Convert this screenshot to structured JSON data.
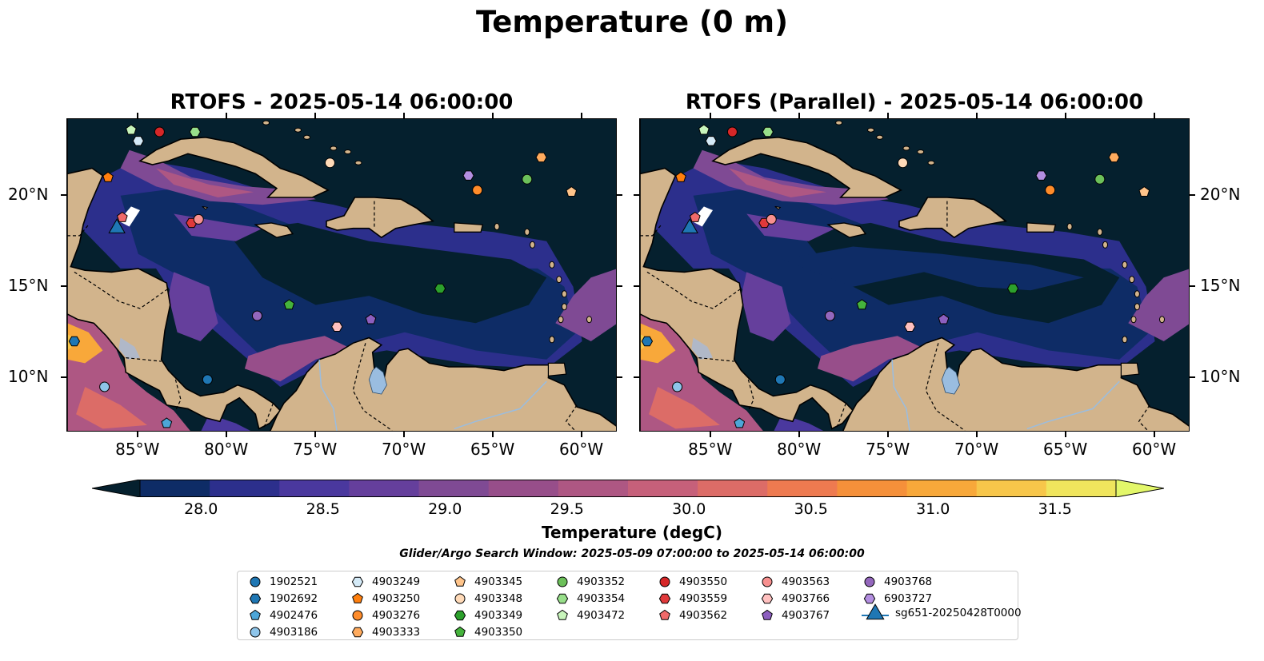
{
  "suptitle": "Temperature (0 m)",
  "panels": [
    {
      "title": "RTOFS - 2025-05-14 06:00:00"
    },
    {
      "title": "RTOFS (Parallel) - 2025-05-14 06:00:00"
    }
  ],
  "lon_ticks": [
    "85°W",
    "80°W",
    "75°W",
    "70°W",
    "65°W",
    "60°W"
  ],
  "lat_ticks": [
    "20°N",
    "15°N",
    "10°N"
  ],
  "map_extent": {
    "lon": [
      -89,
      -58
    ],
    "lat": [
      7,
      24.2
    ]
  },
  "colorbar": {
    "label": "Temperature (degC)",
    "range": [
      27.75,
      31.75
    ],
    "step": 0.25,
    "extend": "both",
    "ticks": [
      "28.0",
      "28.5",
      "29.0",
      "29.5",
      "30.0",
      "30.5",
      "31.0",
      "31.5"
    ],
    "colors": [
      "#05202e",
      "#0e2c66",
      "#2c2f8c",
      "#4a389e",
      "#653f9c",
      "#7f4a94",
      "#974e8a",
      "#ae5783",
      "#c6607a",
      "#dc6c67",
      "#ee7a50",
      "#f5903a",
      "#f8a83a",
      "#f7c64a",
      "#f0e55d",
      "#e3f76a"
    ],
    "colormap": "thermal"
  },
  "search_window": "Glider/Argo Search Window: 2025-05-09 07:00:00 to 2025-05-14 06:00:00",
  "legend": [
    {
      "label": "1902521",
      "marker": "circle",
      "color": "#1f77b4"
    },
    {
      "label": "1902692",
      "marker": "hexagon",
      "color": "#1f77b4"
    },
    {
      "label": "4902476",
      "marker": "pentagon",
      "color": "#4da6d8"
    },
    {
      "label": "4903186",
      "marker": "circle",
      "color": "#8ec5ea"
    },
    {
      "label": "4903249",
      "marker": "hexagon",
      "color": "#d4eaf7"
    },
    {
      "label": "4903250",
      "marker": "pentagon",
      "color": "#ff7f0e"
    },
    {
      "label": "4903276",
      "marker": "circle",
      "color": "#ff8c2a"
    },
    {
      "label": "4903333",
      "marker": "hexagon",
      "color": "#ffab5e"
    },
    {
      "label": "4903345",
      "marker": "pentagon",
      "color": "#ffc48a"
    },
    {
      "label": "4903348",
      "marker": "circle",
      "color": "#ffdab8"
    },
    {
      "label": "4903349",
      "marker": "hexagon",
      "color": "#2ca02c"
    },
    {
      "label": "4903350",
      "marker": "pentagon",
      "color": "#45b33c"
    },
    {
      "label": "4903352",
      "marker": "circle",
      "color": "#6cc05a"
    },
    {
      "label": "4903354",
      "marker": "hexagon",
      "color": "#98df8a"
    },
    {
      "label": "4903472",
      "marker": "pentagon",
      "color": "#c8f5bb"
    },
    {
      "label": "4903550",
      "marker": "circle",
      "color": "#d62728"
    },
    {
      "label": "4903559",
      "marker": "hexagon",
      "color": "#e0393b"
    },
    {
      "label": "4903562",
      "marker": "pentagon",
      "color": "#f06a6a"
    },
    {
      "label": "4903563",
      "marker": "circle",
      "color": "#f7908f"
    },
    {
      "label": "4903766",
      "marker": "hexagon",
      "color": "#ffc0bf"
    },
    {
      "label": "4903767",
      "marker": "pentagon",
      "color": "#8d5fbf"
    },
    {
      "label": "4903768",
      "marker": "circle",
      "color": "#9467bd"
    },
    {
      "label": "6903727",
      "marker": "hexagon",
      "color": "#b38ee0"
    },
    {
      "label": "sg651-20250428T0000",
      "marker": "triangle",
      "color": "#1f77b4"
    }
  ],
  "observations": [
    {
      "id": "1902521",
      "marker": "circle",
      "color": "#1f77b4",
      "lon": -81.1,
      "lat": 9.9
    },
    {
      "id": "1902692",
      "marker": "hexagon",
      "color": "#1f77b4",
      "lon": -88.6,
      "lat": 12.0
    },
    {
      "id": "4902476",
      "marker": "pentagon",
      "color": "#4da6d8",
      "lon": -83.4,
      "lat": 7.5
    },
    {
      "id": "4903186",
      "marker": "circle",
      "color": "#8ec5ea",
      "lon": -86.9,
      "lat": 9.5
    },
    {
      "id": "4903249",
      "marker": "hexagon",
      "color": "#d4eaf7",
      "lon": -85.0,
      "lat": 23.0
    },
    {
      "id": "4903250",
      "marker": "pentagon",
      "color": "#ff7f0e",
      "lon": -86.7,
      "lat": 21.0
    },
    {
      "id": "4903276",
      "marker": "circle",
      "color": "#ff8c2a",
      "lon": -65.9,
      "lat": 20.3
    },
    {
      "id": "4903333",
      "marker": "hexagon",
      "color": "#ffab5e",
      "lon": -62.3,
      "lat": 22.1
    },
    {
      "id": "4903345",
      "marker": "pentagon",
      "color": "#ffc48a",
      "lon": -60.6,
      "lat": 20.2
    },
    {
      "id": "4903348",
      "marker": "circle",
      "color": "#ffdab8",
      "lon": -74.2,
      "lat": 21.8
    },
    {
      "id": "4903349",
      "marker": "hexagon",
      "color": "#2ca02c",
      "lon": -68.0,
      "lat": 14.9
    },
    {
      "id": "4903350",
      "marker": "pentagon",
      "color": "#45b33c",
      "lon": -76.5,
      "lat": 14.0
    },
    {
      "id": "4903352",
      "marker": "circle",
      "color": "#6cc05a",
      "lon": -63.1,
      "lat": 20.9
    },
    {
      "id": "4903354",
      "marker": "hexagon",
      "color": "#98df8a",
      "lon": -81.8,
      "lat": 23.5
    },
    {
      "id": "4903472",
      "marker": "pentagon",
      "color": "#c8f5bb",
      "lon": -85.4,
      "lat": 23.6
    },
    {
      "id": "4903550",
      "marker": "circle",
      "color": "#d62728",
      "lon": -83.8,
      "lat": 23.5
    },
    {
      "id": "4903559",
      "marker": "hexagon",
      "color": "#e0393b",
      "lon": -82.0,
      "lat": 18.5
    },
    {
      "id": "4903562",
      "marker": "pentagon",
      "color": "#f06a6a",
      "lon": -85.9,
      "lat": 18.8
    },
    {
      "id": "4903563",
      "marker": "circle",
      "color": "#f7908f",
      "lon": -81.6,
      "lat": 18.7
    },
    {
      "id": "4903766",
      "marker": "hexagon",
      "color": "#ffc0bf",
      "lon": -73.8,
      "lat": 12.8
    },
    {
      "id": "4903767",
      "marker": "pentagon",
      "color": "#8d5fbf",
      "lon": -71.9,
      "lat": 13.2
    },
    {
      "id": "4903768",
      "marker": "circle",
      "color": "#9467bd",
      "lon": -78.3,
      "lat": 13.4
    },
    {
      "id": "6903727",
      "marker": "hexagon",
      "color": "#b38ee0",
      "lon": -66.4,
      "lat": 21.1
    },
    {
      "id": "sg651-20250428T0000",
      "marker": "triangle",
      "color": "#1f77b4",
      "lon": -86.2,
      "lat": 18.3
    }
  ],
  "colors": {
    "land": "#d2b48c",
    "water_lakes": "#9abde0",
    "ocean_base": "#05202e"
  }
}
